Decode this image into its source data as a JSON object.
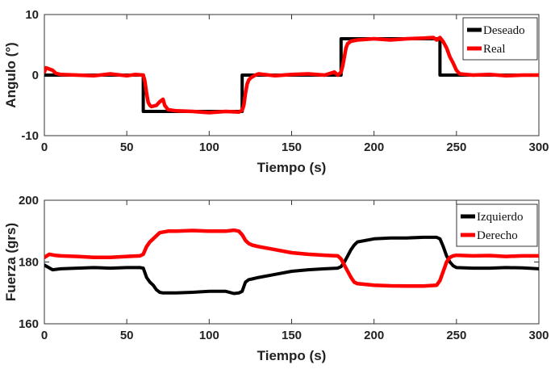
{
  "chart_data": [
    {
      "type": "line",
      "title": "",
      "xlabel": "Tiempo (s)",
      "ylabel": "Angulo (°)",
      "xlim": [
        0,
        300
      ],
      "ylim": [
        -10,
        10
      ],
      "xticks": [
        0,
        50,
        100,
        150,
        200,
        250,
        300
      ],
      "yticks": [
        -10,
        0,
        10
      ],
      "xtick_labels": [
        "0",
        "50",
        "100",
        "150",
        "200",
        "250",
        "300"
      ],
      "ytick_labels": [
        "-10",
        "0",
        "10"
      ],
      "grid": false,
      "legend_position": "top-right",
      "series": [
        {
          "name": "Deseado",
          "color": "#000000",
          "x": [
            0,
            60,
            60,
            120,
            120,
            180,
            180,
            240,
            240,
            300
          ],
          "y": [
            0,
            0,
            -6,
            -6,
            0,
            0,
            6,
            6,
            0,
            0
          ]
        },
        {
          "name": "Real",
          "color": "#ff0000",
          "x": [
            0,
            1,
            3,
            5,
            7,
            10,
            20,
            30,
            40,
            50,
            55,
            60,
            61,
            62,
            63,
            64,
            65,
            68,
            70,
            72,
            73,
            75,
            80,
            90,
            100,
            110,
            118,
            120,
            121,
            122,
            123,
            124,
            125,
            126,
            128,
            130,
            140,
            150,
            160,
            170,
            176,
            178,
            180,
            181,
            182,
            183,
            184,
            186,
            190,
            200,
            210,
            220,
            230,
            236,
            238,
            240,
            242,
            244,
            246,
            248,
            250,
            252,
            260,
            270,
            280,
            290,
            300
          ],
          "y": [
            0.5,
            1.2,
            1.0,
            0.8,
            0.3,
            0.1,
            0.0,
            -0.1,
            0.2,
            -0.1,
            0.1,
            0.0,
            -1.0,
            -3.0,
            -4.5,
            -5.0,
            -5.2,
            -5.0,
            -4.4,
            -4.0,
            -5.0,
            -5.7,
            -5.9,
            -6.0,
            -6.2,
            -6.0,
            -6.1,
            -5.8,
            -5.0,
            -3.0,
            -1.5,
            -0.8,
            -0.5,
            -0.3,
            0.0,
            0.2,
            -0.1,
            0.1,
            0.2,
            0.0,
            0.5,
            0.0,
            0.5,
            1.5,
            3.0,
            4.5,
            5.2,
            5.6,
            5.8,
            6.0,
            5.8,
            6.0,
            6.1,
            6.2,
            5.8,
            6.2,
            5.5,
            4.5,
            3.0,
            2.0,
            0.8,
            0.2,
            0.0,
            0.1,
            -0.1,
            0.0,
            0.0
          ]
        }
      ]
    },
    {
      "type": "line",
      "title": "",
      "xlabel": "Tiempo (s)",
      "ylabel": "Fuerza (grs)",
      "xlim": [
        0,
        300
      ],
      "ylim": [
        160,
        200
      ],
      "xticks": [
        0,
        50,
        100,
        150,
        200,
        250,
        300
      ],
      "yticks": [
        160,
        180,
        200
      ],
      "xtick_labels": [
        "0",
        "50",
        "100",
        "150",
        "200",
        "250",
        "300"
      ],
      "ytick_labels": [
        "160",
        "180",
        "200"
      ],
      "grid": false,
      "legend_position": "top-right",
      "series": [
        {
          "name": "Izquierdo",
          "color": "#000000",
          "x": [
            0,
            5,
            10,
            20,
            30,
            40,
            50,
            58,
            60,
            62,
            64,
            66,
            68,
            70,
            72,
            75,
            80,
            90,
            100,
            110,
            115,
            118,
            120,
            121,
            122,
            124,
            126,
            130,
            140,
            150,
            160,
            170,
            178,
            180,
            182,
            184,
            186,
            188,
            190,
            200,
            210,
            220,
            230,
            238,
            240,
            242,
            244,
            246,
            248,
            250,
            260,
            270,
            280,
            290,
            300
          ],
          "y": [
            179,
            177.5,
            177.8,
            178,
            178.2,
            178,
            178.2,
            178.2,
            178,
            175,
            173.5,
            172.5,
            171,
            170.2,
            170,
            170,
            170,
            170.2,
            170.5,
            170.5,
            169.8,
            170,
            170.5,
            172,
            173.5,
            174.3,
            174.5,
            175,
            176,
            177,
            177.5,
            177.8,
            178,
            178.5,
            180,
            182,
            184,
            185.5,
            186.5,
            187.5,
            187.8,
            187.8,
            188,
            188,
            187.5,
            185,
            182,
            180,
            178.8,
            178.2,
            178,
            178,
            178.2,
            178.1,
            177.8
          ]
        },
        {
          "name": "Derecho",
          "color": "#ff0000",
          "x": [
            0,
            3,
            6,
            10,
            20,
            30,
            40,
            50,
            58,
            60,
            62,
            64,
            66,
            68,
            70,
            75,
            80,
            90,
            100,
            110,
            115,
            118,
            120,
            122,
            124,
            126,
            130,
            140,
            150,
            160,
            170,
            178,
            180,
            182,
            184,
            186,
            188,
            190,
            200,
            210,
            220,
            230,
            238,
            240,
            242,
            244,
            246,
            248,
            250,
            260,
            270,
            280,
            290,
            300
          ],
          "y": [
            181.5,
            182.5,
            182.2,
            182,
            181.8,
            181.5,
            181.5,
            181.8,
            182,
            182.5,
            185,
            186.5,
            187.5,
            188.5,
            189.5,
            190,
            190,
            190.2,
            190,
            190,
            190.3,
            190,
            188.8,
            187,
            186,
            185.5,
            185,
            184,
            183,
            182.5,
            182.2,
            182,
            181,
            179,
            177,
            175,
            173.5,
            173,
            172.5,
            172.3,
            172.2,
            172.2,
            172.5,
            174,
            177,
            180,
            181.5,
            182,
            182.2,
            182,
            182.1,
            181.8,
            182,
            182
          ]
        }
      ]
    }
  ]
}
